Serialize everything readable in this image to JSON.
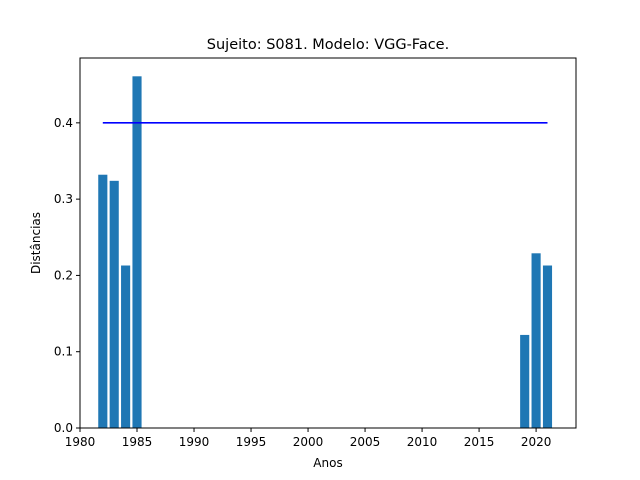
{
  "chart_data": {
    "type": "bar",
    "title": "Sujeito: S081. Modelo: VGG-Face.",
    "xlabel": "Anos",
    "ylabel": "Distâncias",
    "xlim": [
      1980,
      2023.5
    ],
    "ylim": [
      0,
      0.485
    ],
    "xticks": [
      1980,
      1985,
      1990,
      1995,
      2000,
      2005,
      2010,
      2015,
      2020
    ],
    "yticks": [
      0.0,
      0.1,
      0.2,
      0.3,
      0.4
    ],
    "ytick_labels": [
      "0.0",
      "0.1",
      "0.2",
      "0.3",
      "0.4"
    ],
    "grid": false,
    "bar_color": "#1f77b4",
    "bar_width_years": 0.8,
    "x": [
      1982,
      1983,
      1984,
      1985,
      2019,
      2020,
      2021
    ],
    "values": [
      0.332,
      0.324,
      0.213,
      0.461,
      0.122,
      0.229,
      0.213
    ],
    "threshold": {
      "value": 0.4,
      "x_start": 1982,
      "x_end": 2021,
      "color": "#0000ff"
    }
  }
}
